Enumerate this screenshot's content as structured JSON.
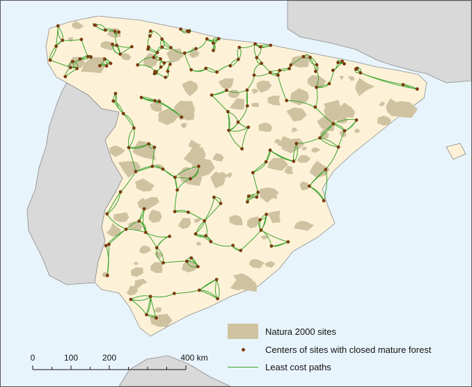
{
  "colors": {
    "sea": "#e8f4fb",
    "land_other": "#d9d9d9",
    "land_iberia": "#fdf2d8",
    "natura": "#cfc2a1",
    "sites": "#7a3b10",
    "paths": "#3aa32c",
    "border": "#8a8a8a"
  },
  "legend": {
    "natura_label": "Natura 2000 sites",
    "centers_label": "Centers of sites with closed mature forest",
    "paths_label": "Least cost paths"
  },
  "scale_bar": {
    "ticks": [
      {
        "label": "0",
        "km": 0
      },
      {
        "label": "100",
        "km": 100
      },
      {
        "label": "200",
        "km": 200
      },
      {
        "label": "400 km",
        "km": 400
      }
    ]
  }
}
